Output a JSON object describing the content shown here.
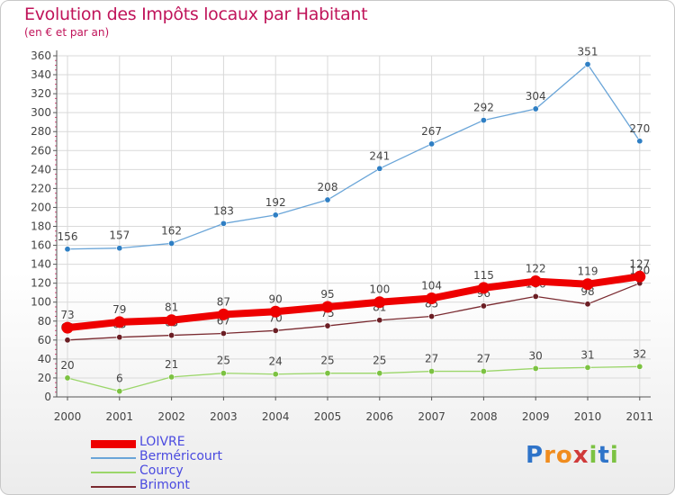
{
  "header": {
    "title": "Evolution des Impôts locaux par Habitant",
    "subtitle": "(en € et par an)"
  },
  "logo": {
    "letters": [
      "P",
      "r",
      "o",
      "x",
      "i",
      "t",
      "i"
    ],
    "colors": [
      "#2f74c9",
      "#f08c1e",
      "#f08c1e",
      "#d03a3a",
      "#7cc242",
      "#2f74c9",
      "#7cc242"
    ]
  },
  "colors": {
    "grid": "#d9d9d9",
    "axis": "#555555",
    "tick_red": "#e0457a",
    "label": "#444444"
  },
  "chart_data": {
    "type": "line",
    "title": "Evolution des Impôts locaux par Habitant",
    "subtitle": "(en € et par an)",
    "xlabel": "",
    "ylabel": "",
    "x": [
      "2000",
      "2001",
      "2002",
      "2003",
      "2004",
      "2005",
      "2006",
      "2007",
      "2008",
      "2009",
      "2010",
      "2011"
    ],
    "ylim": [
      0,
      360
    ],
    "yticks": [
      0,
      20,
      40,
      60,
      80,
      100,
      120,
      140,
      160,
      180,
      200,
      220,
      240,
      260,
      280,
      300,
      320,
      340,
      360
    ],
    "grid": true,
    "legend_position": "bottom-left",
    "series": [
      {
        "name": "Berméricourt",
        "values": [
          156,
          157,
          162,
          183,
          192,
          208,
          241,
          267,
          292,
          304,
          351,
          270
        ],
        "color": "#6aa5d8",
        "marker": "#2f7fc4",
        "style": "thin"
      },
      {
        "name": "Brimont",
        "values": [
          60,
          63,
          65,
          67,
          70,
          75,
          81,
          85,
          96,
          106,
          98,
          120
        ],
        "color": "#7a2a30",
        "marker": "#6b1e24",
        "style": "thin"
      },
      {
        "name": "Courcy",
        "values": [
          20,
          6,
          21,
          25,
          24,
          25,
          25,
          27,
          27,
          30,
          31,
          32
        ],
        "color": "#9bd66a",
        "marker": "#7cc242",
        "style": "thin"
      },
      {
        "name": "LOIVRE",
        "values": [
          73,
          79,
          81,
          87,
          90,
          95,
          100,
          104,
          115,
          122,
          119,
          127
        ],
        "color": "#ee0000",
        "marker": "#ee0000",
        "style": "thick"
      }
    ],
    "legend_order": [
      "LOIVRE",
      "Berméricourt",
      "Courcy",
      "Brimont"
    ]
  }
}
